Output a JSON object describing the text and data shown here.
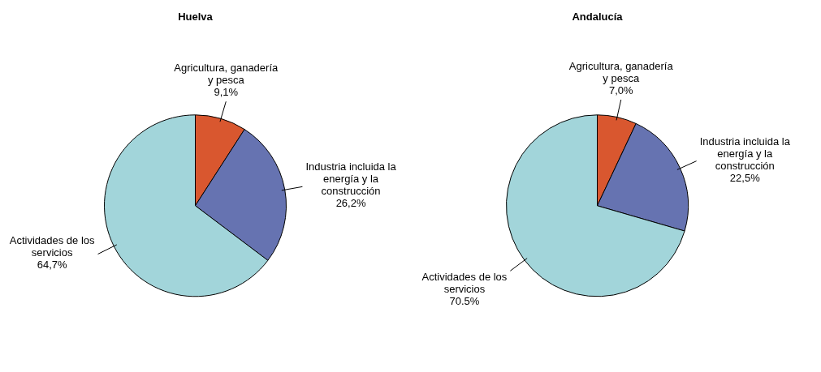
{
  "chart_data": [
    {
      "type": "pie",
      "title": "Huelva",
      "categories": [
        "Agricultura, ganadería y pesca",
        "Industria incluida la energía y la construcción",
        "Actividades de los servicios"
      ],
      "values": [
        9.1,
        26.2,
        64.7
      ],
      "value_labels": [
        "9,1%",
        "26,2%",
        "64,7%"
      ],
      "colors": [
        "#d9572f",
        "#6673b1",
        "#a2d5da"
      ],
      "legend": false
    },
    {
      "type": "pie",
      "title": "Andalucía",
      "categories": [
        "Agricultura, ganadería y pesca",
        "Industria incluida la energía y la construcción",
        "Actividades de los servicios"
      ],
      "values": [
        7.0,
        22.5,
        70.5
      ],
      "value_labels": [
        "7,0%",
        "22,5%",
        "70.5%"
      ],
      "colors": [
        "#d9572f",
        "#6673b1",
        "#a2d5da"
      ],
      "legend": false
    }
  ]
}
